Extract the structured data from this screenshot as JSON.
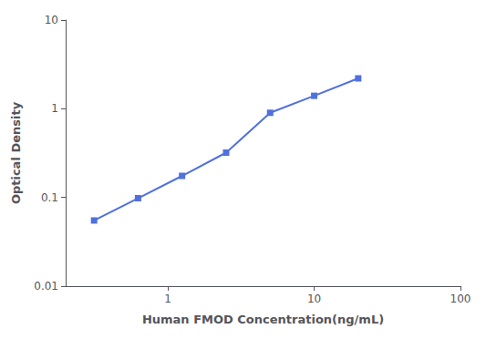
{
  "chart_data": {
    "type": "line",
    "log": true,
    "x": [
      0.313,
      0.625,
      1.25,
      2.5,
      5.0,
      10.0,
      20.0
    ],
    "values": [
      0.055,
      0.098,
      0.175,
      0.32,
      0.9,
      1.4,
      2.2
    ],
    "xlabel": "Human FMOD Concentration(ng/mL)",
    "ylabel": "Optical Density",
    "xlim": [
      0.2,
      100
    ],
    "ylim": [
      0.01,
      10
    ],
    "xticks": [
      1,
      10,
      100
    ],
    "yticks": [
      0.01,
      0.1,
      1,
      10
    ],
    "marker": "square",
    "grid": false
  }
}
